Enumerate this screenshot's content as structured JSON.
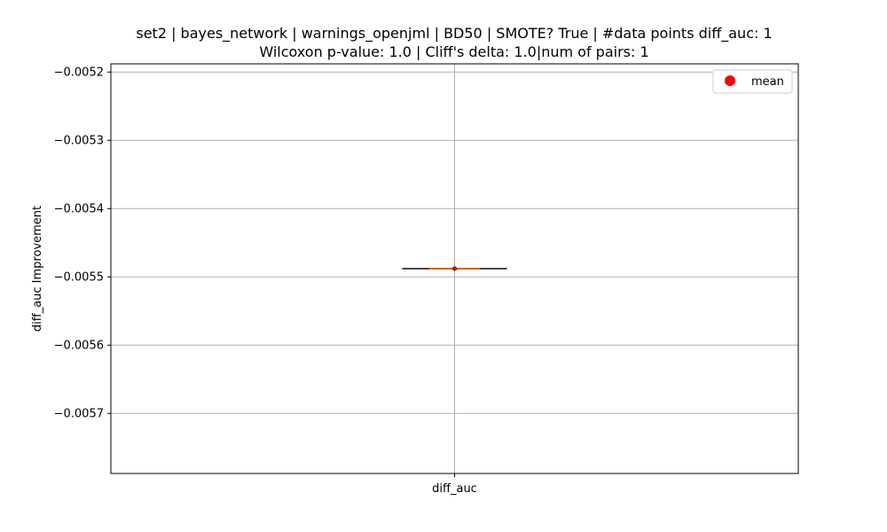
{
  "chart_data": {
    "type": "box",
    "title": "set2 | bayes_network | warnings_openjml | BD50 | SMOTE? True | #data points diff_auc: 1",
    "subtitle": "Wilcoxon p-value: 1.0 | Cliff's delta: 1.0|num of pairs: 1",
    "xlabel": "",
    "ylabel": "diff_auc Improvement",
    "categories": [
      "diff_auc"
    ],
    "series": [
      {
        "category": "diff_auc",
        "min": -0.005488,
        "q1": -0.005488,
        "median": -0.005488,
        "q3": -0.005488,
        "max": -0.005488,
        "mean": -0.005488
      }
    ],
    "ylim": [
      -0.005788,
      -0.005188
    ],
    "yticks": [
      -0.0052,
      -0.0053,
      -0.0054,
      -0.0055,
      -0.0056,
      -0.0057
    ],
    "ytick_labels": [
      "−0.0052",
      "−0.0053",
      "−0.0054",
      "−0.0055",
      "−0.0056",
      "−0.0057"
    ],
    "grid": true,
    "legend": {
      "position": "top-right",
      "entries": [
        "mean"
      ]
    },
    "colors": {
      "box": "#000000",
      "median": "#ff7f0e",
      "mean": "#ff0000",
      "grid": "#b0b0b0"
    }
  }
}
